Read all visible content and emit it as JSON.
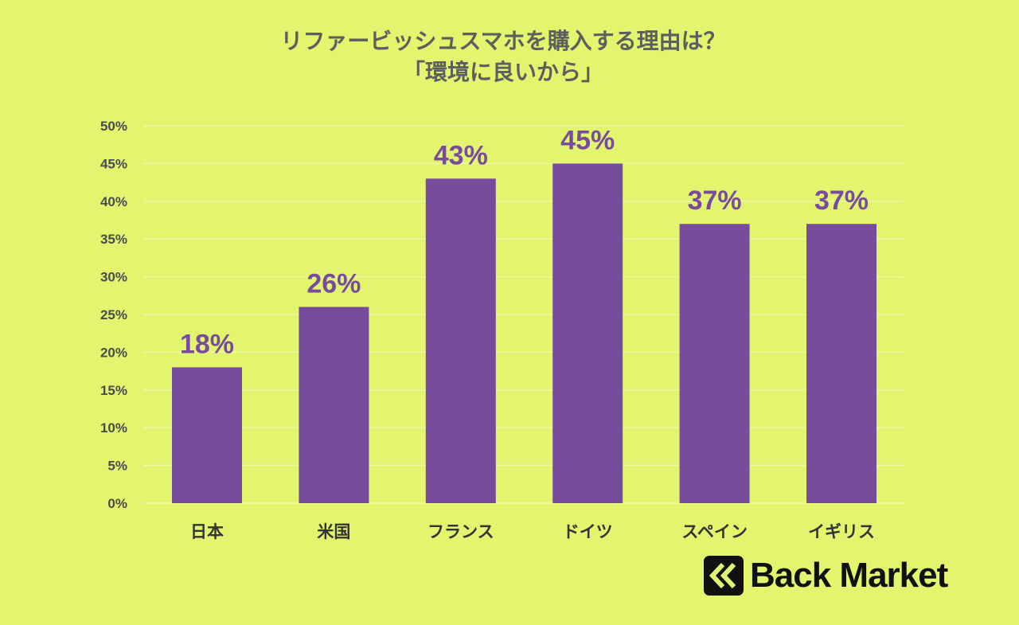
{
  "chart_data": {
    "type": "bar",
    "title": "リファービッシュスマホを購入する理由は？",
    "subtitle": "「環境に良いから」",
    "categories": [
      "日本",
      "米国",
      "フランス",
      "ドイツ",
      "スペイン",
      "イギリス"
    ],
    "values": [
      18,
      26,
      43,
      45,
      37,
      37
    ],
    "value_labels": [
      "18%",
      "26%",
      "43%",
      "45%",
      "37%",
      "37%"
    ],
    "y_ticks": [
      "0%",
      "5%",
      "10%",
      "15%",
      "20%",
      "25%",
      "30%",
      "35%",
      "40%",
      "45%",
      "50%"
    ],
    "ylim": [
      0,
      50
    ],
    "grid": true,
    "legend": "none"
  },
  "colors": {
    "background": "#e3f56f",
    "bar": "#774c9d",
    "data_label": "#774c9d"
  },
  "brand": {
    "name": "Back Market",
    "logo_icon": "double-chevron-left-icon"
  }
}
